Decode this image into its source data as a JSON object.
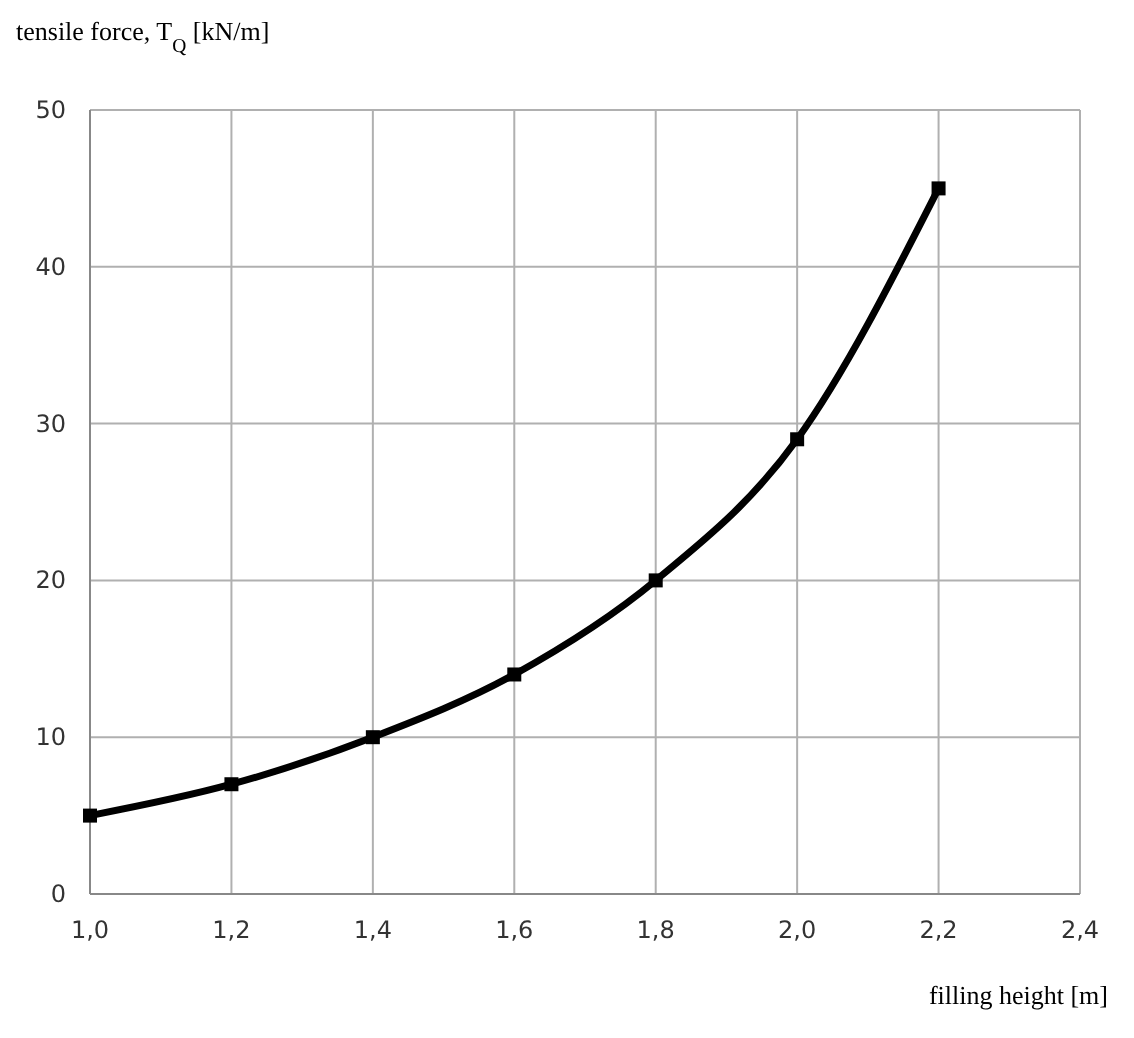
{
  "chart_data": {
    "type": "line",
    "ylabel": "tensile force, T$_{Q}$ [kN/m]",
    "xlabel": "filling height [m]",
    "x": [
      1.0,
      1.2,
      1.4,
      1.6,
      1.8,
      2.0,
      2.2
    ],
    "series": [
      {
        "color": "#000000",
        "values": [
          5,
          7,
          10,
          14,
          20,
          29,
          45
        ]
      }
    ],
    "xlim": [
      1.0,
      2.4
    ],
    "xticks": [
      {
        "value": 1.0,
        "label": "1,0"
      },
      {
        "value": 1.2,
        "label": "1,2"
      },
      {
        "value": 1.4,
        "label": "1,4"
      },
      {
        "value": 1.6,
        "label": "1,6"
      },
      {
        "value": 1.8,
        "label": "1,8"
      },
      {
        "value": 2.0,
        "label": "2,0"
      },
      {
        "value": 2.2,
        "label": "2,2"
      },
      {
        "value": 2.4,
        "label": "2,4"
      }
    ],
    "ylim": [
      0,
      50
    ],
    "yticks": [
      0,
      10,
      20,
      30,
      40,
      50
    ],
    "grid": true,
    "marker": "square",
    "line_style": "solid"
  }
}
